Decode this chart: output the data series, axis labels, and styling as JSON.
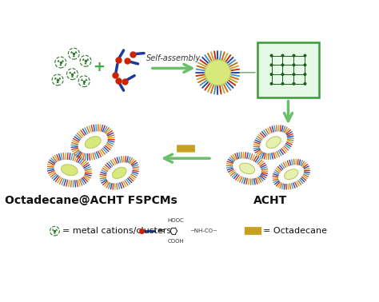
{
  "background_color": "#ffffff",
  "self_assembly_text": "Self-assembly",
  "label_left": "Octadecane@ACHT FSPCMs",
  "label_right": "ACHT",
  "legend_metal": "= metal cations/clusters",
  "legend_octadecane": "= Octadecane",
  "arrow_color": "#6bbf6b",
  "sphere_color_left": "#d8e87a",
  "sphere_color_right": "#e8f0b0",
  "sphere_outline": "#b8cc6a",
  "spike_blue": "#1a3a9e",
  "spike_red": "#cc2200",
  "spike_yellow": "#c8a030",
  "spike_orange": "#cc6600",
  "spike_light": "#4090c0",
  "metal_color": "#2a7a2a",
  "linker_dot": "#cc2200",
  "linker_line": "#1a3a9e",
  "octadecane_color": "#c8a020",
  "box_color": "#3a9a3a",
  "label_fontsize": 10,
  "legend_fontsize": 8
}
